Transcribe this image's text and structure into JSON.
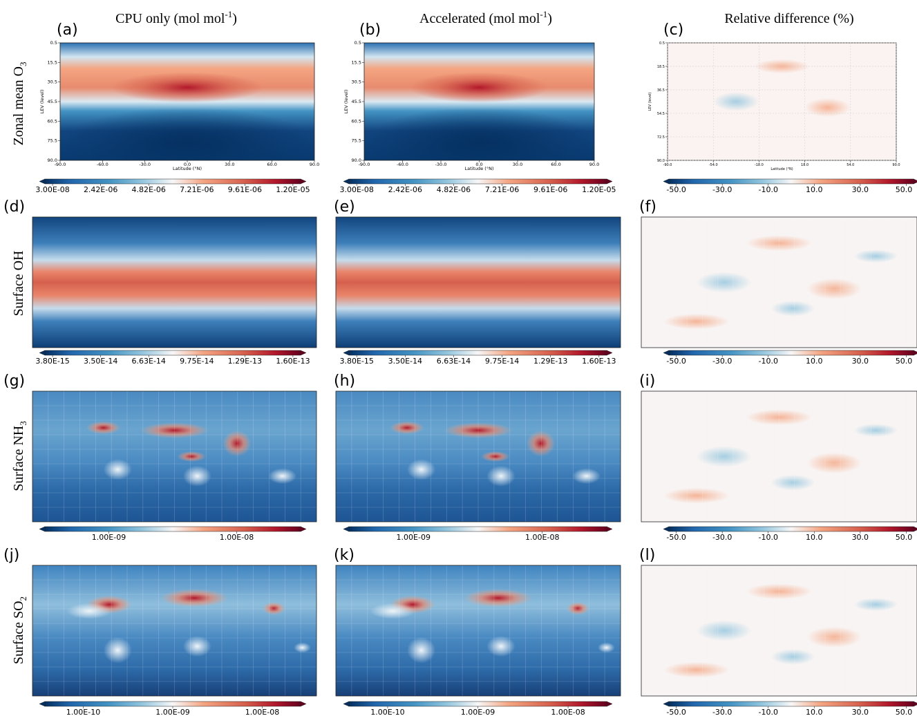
{
  "columns": [
    {
      "main": "CPU only (mol mol",
      "sup": "-1",
      "end": ")"
    },
    {
      "main": "Accelerated (mol mol",
      "sup": "-1",
      "end": ")"
    },
    {
      "main": "Relative difference (%)"
    }
  ],
  "rows": [
    {
      "main": "Zonal mean O",
      "sub": "3"
    },
    {
      "main": "Surface OH"
    },
    {
      "main": "Surface NH",
      "sub": "3"
    },
    {
      "main": "Surface SO",
      "sub": "2"
    }
  ],
  "panels": [
    {
      "letter": "(a)",
      "y_axis_label": "LEV (level)",
      "x_axis_label": "Latitude (°N)",
      "yticks": [
        "0.5",
        "15.5",
        "30.5",
        "45.5",
        "60.5",
        "75.5",
        "90.0"
      ],
      "xticks": [
        "-90.0",
        "-60.0",
        "-30.0",
        "0.0",
        "30.0",
        "60.0",
        "90.0"
      ],
      "colorbar": [
        "3.00E-08",
        "2.42E-06",
        "4.82E-06",
        "7.21E-06",
        "9.61E-06",
        "1.20E-05"
      ]
    },
    {
      "letter": "(b)",
      "y_axis_label": "LEV (level)",
      "x_axis_label": "Latitude (°N)",
      "yticks": [
        "0.5",
        "15.5",
        "30.5",
        "45.5",
        "60.5",
        "75.5",
        "90.0"
      ],
      "xticks": [
        "-90.0",
        "-60.0",
        "-30.0",
        "0.0",
        "30.0",
        "60.0",
        "90.0"
      ],
      "colorbar": [
        "3.00E-08",
        "2.42E-06",
        "4.82E-06",
        "7.21E-06",
        "9.61E-06",
        "1.20E-05"
      ]
    },
    {
      "letter": "(c)",
      "y_axis_label": "LEV (level)",
      "x_axis_label": "Latitude (°N)",
      "yticks": [
        "0.5",
        "18.5",
        "36.5",
        "54.5",
        "72.5",
        "90.0"
      ],
      "xticks": [
        "-90.0",
        "-54.0",
        "-18.0",
        "18.0",
        "54.0",
        "90.0"
      ],
      "colorbar": [
        "-50.0",
        "-30.0",
        "-10.0",
        "10.0",
        "30.0",
        "50.0"
      ]
    },
    {
      "letter": "(d)",
      "colorbar": [
        "3.80E-15",
        "3.50E-14",
        "6.63E-14",
        "9.75E-14",
        "1.29E-13",
        "1.60E-13"
      ]
    },
    {
      "letter": "(e)",
      "colorbar": [
        "3.80E-15",
        "3.50E-14",
        "6.63E-14",
        "9.75E-14",
        "1.29E-13",
        "1.60E-13"
      ]
    },
    {
      "letter": "(f)",
      "colorbar": [
        "-50.0",
        "-30.0",
        "-10.0",
        "10.0",
        "30.0",
        "50.0"
      ]
    },
    {
      "letter": "(g)",
      "colorbar": [
        "1.00E-09",
        "1.00E-08"
      ]
    },
    {
      "letter": "(h)",
      "colorbar": [
        "1.00E-09",
        "1.00E-08"
      ]
    },
    {
      "letter": "(i)",
      "colorbar": [
        "-50.0",
        "-30.0",
        "-10.0",
        "10.0",
        "30.0",
        "50.0"
      ]
    },
    {
      "letter": "(j)",
      "colorbar": [
        "1.00E-10",
        "1.00E-09",
        "1.00E-08"
      ]
    },
    {
      "letter": "(k)",
      "colorbar": [
        "1.00E-10",
        "1.00E-09",
        "1.00E-08"
      ]
    },
    {
      "letter": "(l)",
      "colorbar": [
        "-50.0",
        "-30.0",
        "-10.0",
        "10.0",
        "30.0",
        "50.0"
      ]
    }
  ]
}
